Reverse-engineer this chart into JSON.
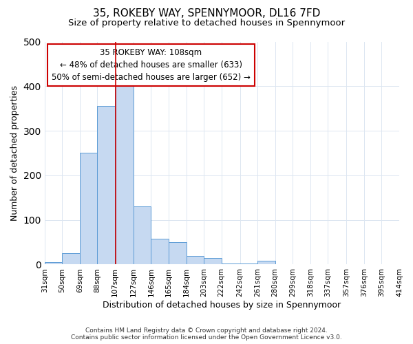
{
  "title": "35, ROKEBY WAY, SPENNYMOOR, DL16 7FD",
  "subtitle": "Size of property relative to detached houses in Spennymoor",
  "xlabel": "Distribution of detached houses by size in Spennymoor",
  "ylabel": "Number of detached properties",
  "bar_edges": [
    31,
    50,
    69,
    88,
    107,
    127,
    146,
    165,
    184,
    203,
    222,
    242,
    261,
    280,
    299,
    318,
    337,
    357,
    376,
    395,
    414
  ],
  "bar_heights": [
    5,
    25,
    250,
    355,
    400,
    130,
    58,
    50,
    20,
    15,
    2,
    2,
    8,
    1,
    1,
    0,
    0,
    1,
    0,
    1
  ],
  "bar_color": "#c6d9f1",
  "bar_edgecolor": "#5b9bd5",
  "property_line_x": 108,
  "property_line_color": "#cc0000",
  "annotation_title": "35 ROKEBY WAY: 108sqm",
  "annotation_line1": "← 48% of detached houses are smaller (633)",
  "annotation_line2": "50% of semi-detached houses are larger (652) →",
  "annotation_box_edgecolor": "#cc0000",
  "annotation_box_facecolor": "#ffffff",
  "ylim": [
    0,
    500
  ],
  "xlim": [
    31,
    414
  ],
  "tick_labels": [
    "31sqm",
    "50sqm",
    "69sqm",
    "88sqm",
    "107sqm",
    "127sqm",
    "146sqm",
    "165sqm",
    "184sqm",
    "203sqm",
    "222sqm",
    "242sqm",
    "261sqm",
    "280sqm",
    "299sqm",
    "318sqm",
    "337sqm",
    "357sqm",
    "376sqm",
    "395sqm",
    "414sqm"
  ],
  "footer_line1": "Contains HM Land Registry data © Crown copyright and database right 2024.",
  "footer_line2": "Contains public sector information licensed under the Open Government Licence v3.0.",
  "background_color": "#ffffff",
  "grid_color": "#dce6f1",
  "title_fontsize": 11,
  "subtitle_fontsize": 9.5,
  "axis_label_fontsize": 9,
  "tick_fontsize": 7.5,
  "annotation_fontsize": 8.5,
  "footer_fontsize": 6.5
}
